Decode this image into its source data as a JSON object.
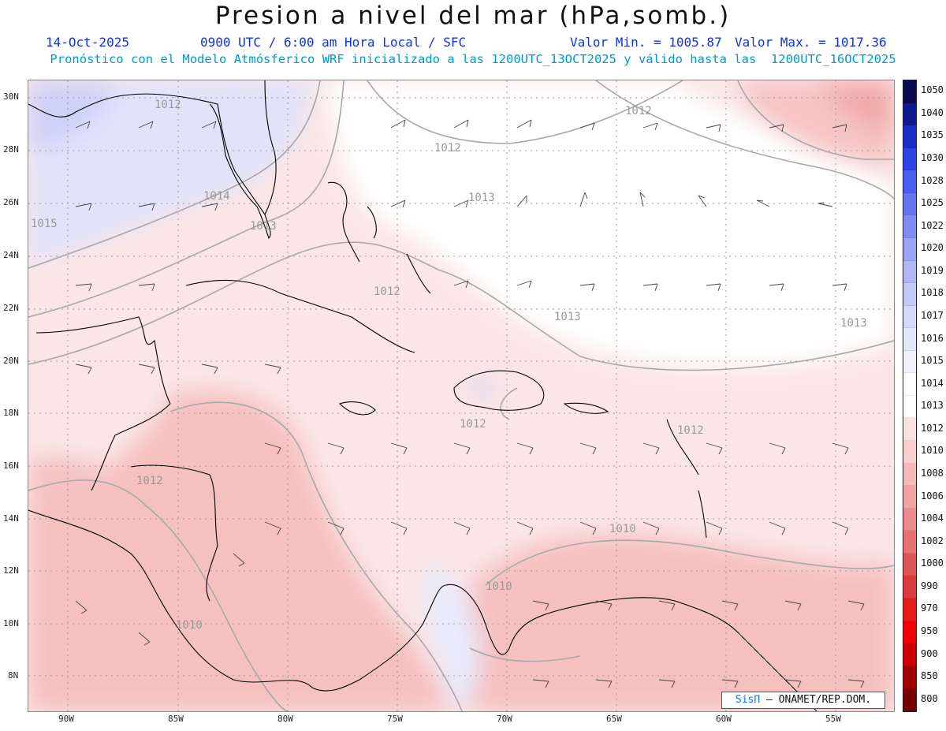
{
  "title": "Presion a nivel del mar (hPa,somb.)",
  "subtitle": {
    "date": "14-Oct-2025",
    "time": "0900 UTC / 6:00 am Hora Local / SFC",
    "min": "Valor Min. = 1005.87",
    "max": "Valor Max. = 1017.36"
  },
  "model_line": "Pronóstico con el Modelo Atmósferico WRF inicializado a las 1200UTC_13OCT2025 y válido hasta las  1200UTC_16OCT2025",
  "lat_labels": [
    "30N",
    "28N",
    "26N",
    "24N",
    "22N",
    "20N",
    "18N",
    "16N",
    "14N",
    "12N",
    "10N",
    "8N"
  ],
  "lon_labels": [
    "90W",
    "85W",
    "80W",
    "75W",
    "70W",
    "65W",
    "60W",
    "55W"
  ],
  "colorbar": {
    "labels": [
      "1050",
      "1040",
      "1035",
      "1030",
      "1028",
      "1025",
      "1022",
      "1020",
      "1019",
      "1018",
      "1017",
      "1016",
      "1015",
      "1014",
      "1013",
      "1012",
      "1010",
      "1008",
      "1006",
      "1004",
      "1002",
      "1000",
      "990",
      "970",
      "950",
      "900",
      "850",
      "800"
    ],
    "colors": [
      "#0a0a50",
      "#101a90",
      "#1a2fc8",
      "#2d44e6",
      "#4a5ef0",
      "#6676f2",
      "#808cf3",
      "#9aa3f5",
      "#b0b7f7",
      "#c3c9f9",
      "#d4d8fb",
      "#e3e6fc",
      "#f0f1fd",
      "#ffffff",
      "#ffffff",
      "#fbe2e2",
      "#f9cfcf",
      "#f5b9b9",
      "#f1a3a3",
      "#ec8c8c",
      "#e67272",
      "#e05555",
      "#dd3a3a",
      "#e81b1b",
      "#f20000",
      "#cc0000",
      "#a50000",
      "#780000"
    ]
  },
  "contour_labels": [
    "1012",
    "1012",
    "1012",
    "1013",
    "1014",
    "1015",
    "1013",
    "1012",
    "1013",
    "1013",
    "1012",
    "1012",
    "1010",
    "1012",
    "1010",
    "1010"
  ],
  "credit": {
    "brand": "SisΠ",
    "text": "– ONAMET/REP.DOM."
  }
}
